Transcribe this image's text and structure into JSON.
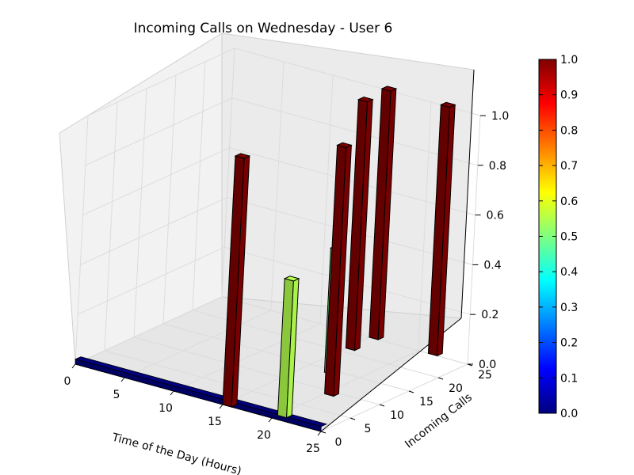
{
  "chart_data": {
    "type": "bar3d",
    "title": "Incoming Calls on Wednesday - User 6",
    "xlabel": "Time of the Day (Hours)",
    "ylabel": "Incoming Calls",
    "zlabel": "",
    "xlim": [
      0,
      25
    ],
    "ylim": [
      0,
      25
    ],
    "zlim": [
      0,
      1.0
    ],
    "x_ticks": [
      "0",
      "5",
      "10",
      "15",
      "20",
      "25"
    ],
    "y_ticks": [
      "0",
      "5",
      "10",
      "15",
      "20",
      "25"
    ],
    "z_ticks": [
      "0.0",
      "0.2",
      "0.4",
      "0.6",
      "0.8",
      "1.0"
    ],
    "grid": true,
    "colormap": "jet",
    "colorbar": {
      "position": "right",
      "ticks": [
        "0.0",
        "0.1",
        "0.2",
        "0.3",
        "0.4",
        "0.5",
        "0.6",
        "0.7",
        "0.8",
        "0.9",
        "1.0"
      ]
    },
    "bars": [
      {
        "x": 15,
        "y": 0,
        "value": 1.0
      },
      {
        "x": 20,
        "y": 1,
        "value": 0.55
      },
      {
        "x": 20,
        "y": 9,
        "value": 1.0
      },
      {
        "x": 17,
        "y": 14,
        "value": 0.5
      },
      {
        "x": 15,
        "y": 21,
        "value": 1.0
      },
      {
        "x": 15,
        "y": 25,
        "value": 1.0
      },
      {
        "x": 21,
        "y": 25,
        "value": 1.0
      }
    ],
    "baseline": {
      "value": 0.0,
      "x_range": [
        0,
        25
      ],
      "y": 0
    }
  }
}
